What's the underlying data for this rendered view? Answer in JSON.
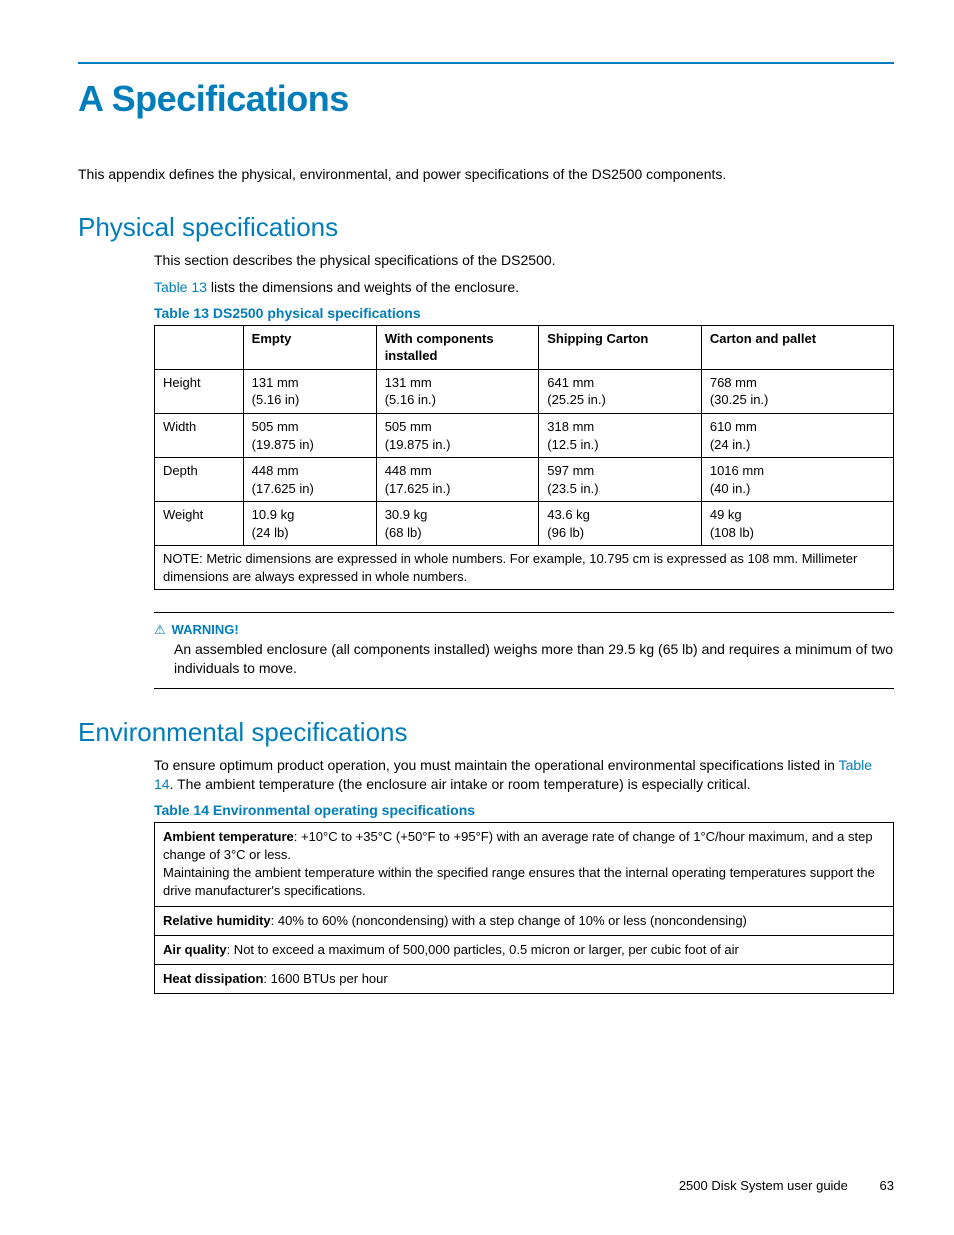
{
  "colors": {
    "accent": "#007dba",
    "text": "#000000",
    "background": "#ffffff",
    "table_border": "#000000"
  },
  "typography": {
    "h1_size_pt": 27,
    "h2_size_pt": 20,
    "body_size_pt": 10.5,
    "font_family": "Arial, Helvetica, sans-serif"
  },
  "appendix_title": "A Specifications",
  "intro": "This appendix defines the physical, environmental, and power specifications of the DS2500 components.",
  "physical": {
    "heading": "Physical specifications",
    "p1": "This section describes the physical specifications of the DS2500.",
    "p2_pre": "",
    "p2_link": "Table 13",
    "p2_post": " lists the dimensions and weights of the enclosure.",
    "table_caption": "Table 13 DS2500 physical specifications",
    "columns": [
      "",
      "Empty",
      "With components installed",
      "Shipping Carton",
      "Carton and pallet"
    ],
    "col_widths_pct": [
      12,
      18,
      22,
      22,
      26
    ],
    "rows": [
      {
        "label": "Height",
        "cells": [
          "131  mm\n(5.16 in)",
          "131  mm\n(5.16 in.)",
          "641  mm\n(25.25 in.)",
          "768  mm\n(30.25 in.)"
        ]
      },
      {
        "label": "Width",
        "cells": [
          "505  mm\n(19.875 in)",
          "505  mm\n(19.875 in.)",
          "318  mm\n(12.5 in.)",
          "610  mm\n(24 in.)"
        ]
      },
      {
        "label": "Depth",
        "cells": [
          "448  mm\n(17.625 in)",
          "448  mm\n(17.625 in.)",
          "597  mm\n(23.5 in.)",
          "1016  mm\n(40 in.)"
        ]
      },
      {
        "label": "Weight",
        "cells": [
          "10.9  kg\n(24 lb)",
          "30.9  kg\n(68 lb)",
          "43.6  kg\n(96 lb)",
          "49  kg\n(108 lb)"
        ]
      }
    ],
    "note": "NOTE: Metric dimensions are expressed in whole numbers. For example, 10.795 cm is expressed as 108 mm. Millimeter dimensions are always expressed in whole numbers."
  },
  "warning": {
    "label": "WARNING!",
    "text": "An assembled enclosure (all components installed) weighs more than 29.5 kg (65 lb) and requires a minimum of two individuals to move."
  },
  "environmental": {
    "heading": "Environmental specifications",
    "p1_pre": "To ensure optimum product operation, you must maintain the operational environmental specifications listed in ",
    "p1_link": "Table 14",
    "p1_post": ". The ambient temperature (the enclosure air intake or room temperature) is especially critical.",
    "table_caption": "Table 14 Environmental operating specifications",
    "rows": [
      {
        "label": "Ambient temperature",
        "text": ":  +10°C to +35°C (+50°F to +95°F) with an average rate of change of 1°C/hour maximum, and a step change of 3°C or less.",
        "extra": "Maintaining the ambient temperature within the specified range ensures that the internal operating temperatures support the drive manufacturer's specifications."
      },
      {
        "label": "Relative humidity",
        "text": ":  40% to 60% (noncondensing) with a step change of 10% or less (noncondensing)",
        "extra": ""
      },
      {
        "label": "Air quality",
        "text": ":  Not to exceed a maximum of 500,000 particles, 0.5 micron or larger, per cubic foot of air",
        "extra": ""
      },
      {
        "label": "Heat dissipation",
        "text": ":  1600 BTUs per hour",
        "extra": ""
      }
    ]
  },
  "footer": {
    "doc": "2500 Disk System user guide",
    "page": "63"
  }
}
